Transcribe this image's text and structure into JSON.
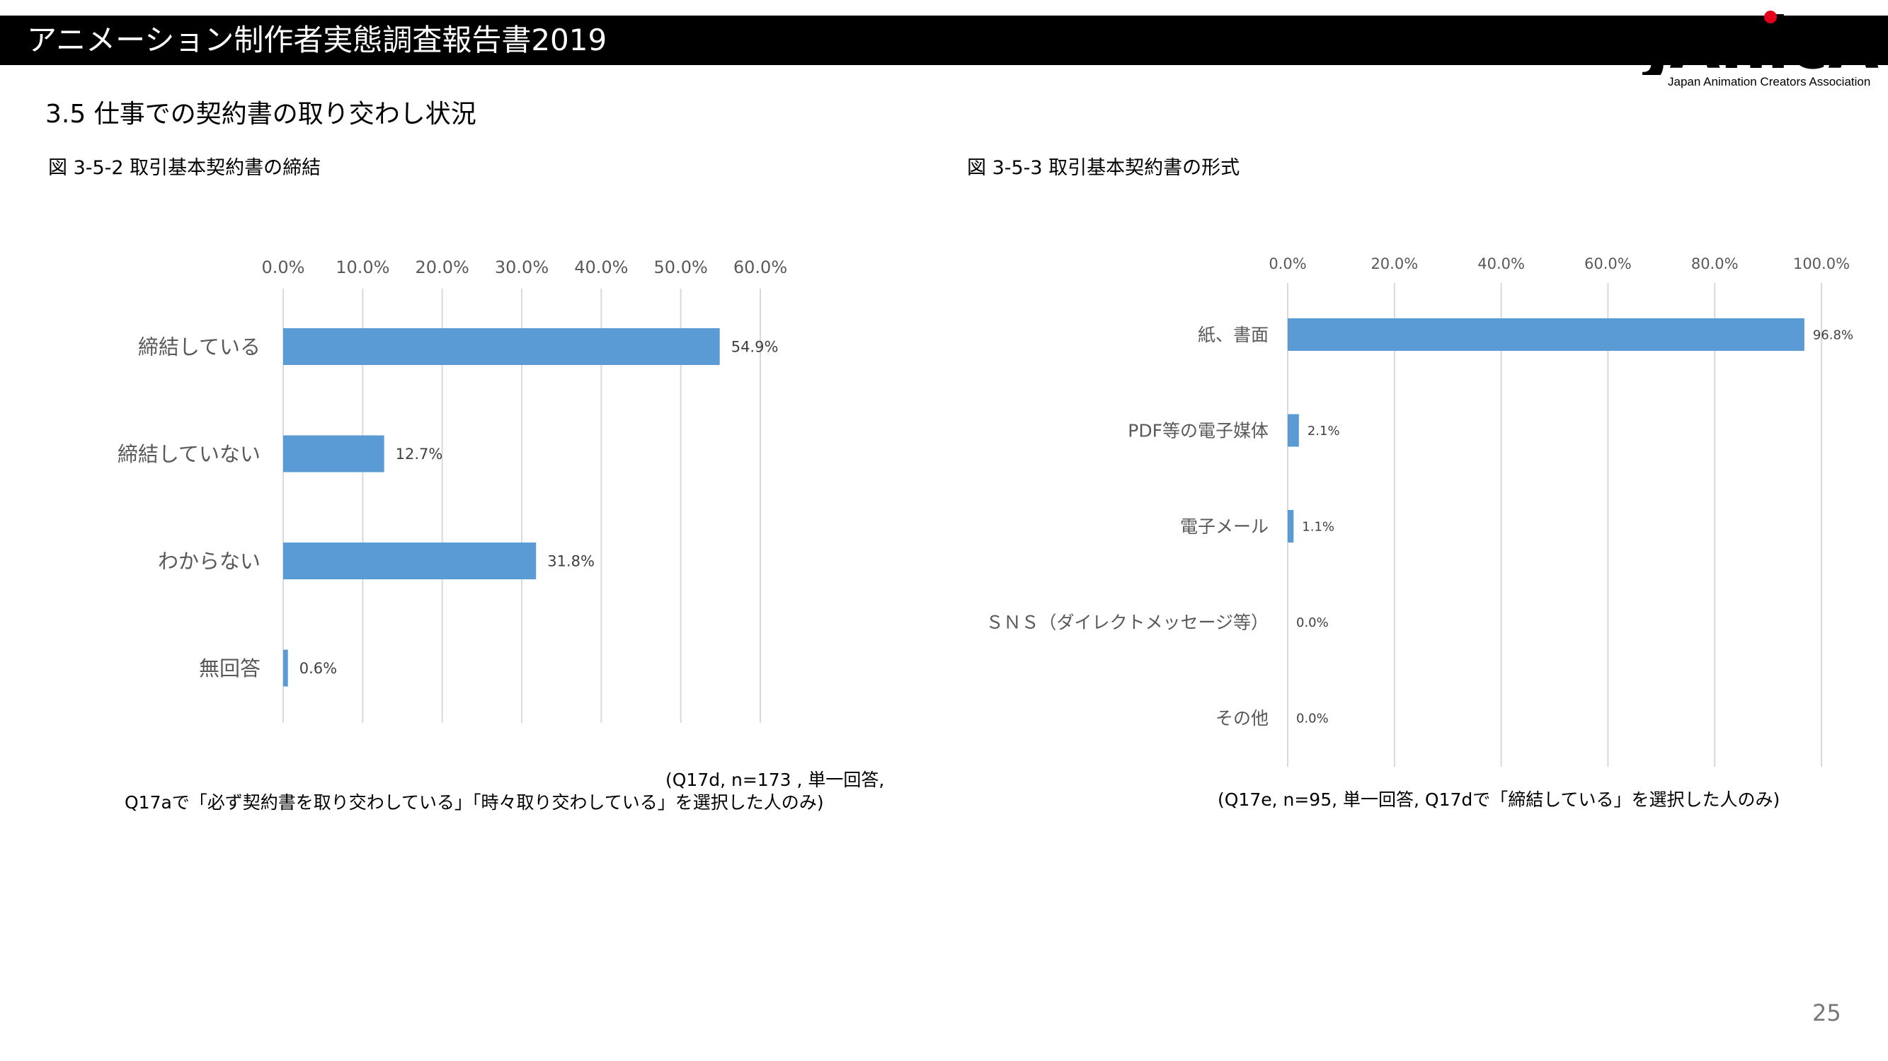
{
  "header": {
    "title": "アニメーション制作者実態調査報告書2019"
  },
  "logo": {
    "text": "JAnicA",
    "subtitle": "Japan Animation Creators Association",
    "dot_color": "#e4001b"
  },
  "section": {
    "heading": "3.5  仕事での契約書の取り交わし状況"
  },
  "figures": {
    "fig1_caption": "図 3-5-2  取引基本契約書の締結",
    "fig2_caption": "図 3-5-3  取引基本契約書の形式"
  },
  "notes": {
    "fig1_line1": "(Q17d,  n=173 ,  単一回答,",
    "fig1_line2": "Q17aで「必ず契約書を取り交わしている」「時々取り交わしている」を選択した人のみ)",
    "fig2": "(Q17e,  n=95,  単一回答,  Q17dで「締結している」を選択した人のみ)"
  },
  "page": {
    "number": "25"
  },
  "chart_data": [
    {
      "type": "bar",
      "orientation": "horizontal",
      "categories": [
        "締結している",
        "締結していない",
        "わからない",
        "無回答"
      ],
      "values": [
        54.9,
        12.7,
        31.8,
        0.6
      ],
      "value_labels": [
        "54.9%",
        "12.7%",
        "31.8%",
        "0.6%"
      ],
      "ticks": [
        "0.0%",
        "10.0%",
        "20.0%",
        "30.0%",
        "40.0%",
        "50.0%",
        "60.0%"
      ],
      "xlim": [
        0,
        60
      ],
      "axis_position": "top",
      "grid": true,
      "bar_color": "#5b9bd5"
    },
    {
      "type": "bar",
      "orientation": "horizontal",
      "categories": [
        "紙、書面",
        "PDF等の電子媒体",
        "電子メール",
        "ＳＮＳ（ダイレクトメッセージ等）",
        "その他"
      ],
      "values": [
        96.8,
        2.1,
        1.1,
        0.0,
        0.0
      ],
      "value_labels": [
        "96.8%",
        "2.1%",
        "1.1%",
        "0.0%",
        "0.0%"
      ],
      "ticks": [
        "0.0%",
        "20.0%",
        "40.0%",
        "60.0%",
        "80.0%",
        "100.0%"
      ],
      "xlim": [
        0,
        100
      ],
      "axis_position": "top",
      "grid": true,
      "bar_color": "#5b9bd5"
    }
  ]
}
